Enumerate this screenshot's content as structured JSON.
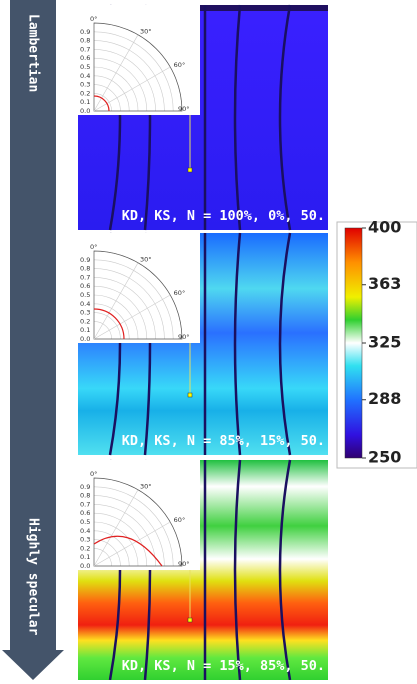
{
  "arrow": {
    "top_label": "Lambertian",
    "bottom_label": "Highly specular"
  },
  "polar": {
    "angle_labels": [
      "0°",
      "30°",
      "60°",
      "90°"
    ],
    "radial_labels": [
      "0.9",
      "0.8",
      "0.7",
      "0.6",
      "0.5",
      "0.4",
      "0.3",
      "0.2",
      "0.1",
      "0.0"
    ]
  },
  "panels": [
    {
      "caption": "KD, KS, N = 100%, 0%, 50."
    },
    {
      "caption": "KD, KS, N = 85%, 15%, 50."
    },
    {
      "caption": "KD, KS, N = 15%, 85%, 50."
    }
  ],
  "colorbar": {
    "range": [
      250,
      400
    ],
    "ticks": [
      400,
      363,
      325,
      288,
      250
    ]
  }
}
